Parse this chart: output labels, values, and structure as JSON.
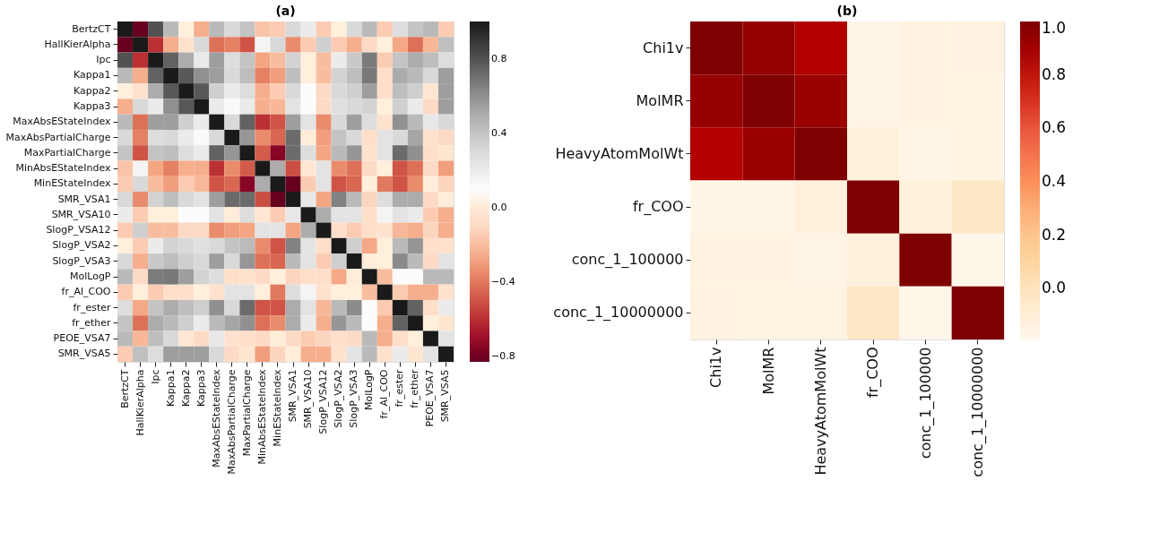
{
  "chart_data": [
    {
      "type": "heatmap",
      "title": "(a)",
      "categories": [
        "BertzCT",
        "HallKierAlpha",
        "Ipc",
        "Kappa1",
        "Kappa2",
        "Kappa3",
        "MaxAbsEStateIndex",
        "MaxAbsPartialCharge",
        "MaxPartialCharge",
        "MinAbsEStateIndex",
        "MinEStateIndex",
        "SMR_VSA1",
        "SMR_VSA10",
        "SlogP_VSA12",
        "SlogP_VSA2",
        "SlogP_VSA3",
        "MolLogP",
        "fr_Al_COO",
        "fr_ester",
        "fr_ether",
        "PEOE_VSA7",
        "SMR_VSA5"
      ],
      "y_categories": [
        "BertzCT",
        "HallKierAlpha",
        "Ipc",
        "Kappa1",
        "Kappa2",
        "Kappa3",
        "MaxAbsEStateIndex",
        "MaxAbsPartialCharge",
        "MaxPartialCharge",
        "MinAbsEStateIndex",
        "MinEStateIndex",
        "SMR_VSA1",
        "SMR_VSA10",
        "SlogP_VSA12",
        "SlogP_VSA2",
        "SlogP_VSA3",
        "MolLogP",
        "fr_Al_COO",
        "fr_ester",
        "fr_ether",
        "PEOE_VSA7",
        "SMR_VSA5"
      ],
      "cells": [
        [
          1,
          -0.83,
          0.8,
          0.45,
          0.03,
          -0.25,
          0.45,
          0.3,
          0.4,
          -0.18,
          -0.15,
          0.3,
          0.2,
          -0.15,
          0.03,
          0.3,
          0.45,
          -0.15,
          0.28,
          0.4,
          0.45,
          -0.15
        ],
        [
          -0.83,
          1,
          -0.6,
          -0.25,
          -0.05,
          0.3,
          -0.42,
          -0.38,
          -0.5,
          0.15,
          0.3,
          -0.35,
          -0.15,
          0.35,
          -0.15,
          -0.25,
          -0.1,
          0.03,
          -0.27,
          -0.42,
          -0.22,
          0.42
        ],
        [
          0.8,
          -0.6,
          1,
          0.75,
          0.5,
          0.2,
          0.55,
          0.28,
          0.4,
          -0.28,
          -0.2,
          0.33,
          0.03,
          -0.2,
          0.2,
          0.38,
          0.67,
          -0.15,
          0.4,
          0.5,
          0.43,
          0.28
        ],
        [
          0.45,
          -0.25,
          0.75,
          1,
          0.78,
          0.6,
          0.55,
          0.3,
          0.43,
          -0.38,
          -0.3,
          0.43,
          0.03,
          -0.2,
          0.33,
          0.43,
          0.68,
          -0.08,
          0.5,
          0.45,
          0.3,
          0.55
        ],
        [
          0.03,
          -0.05,
          0.5,
          0.78,
          1,
          0.78,
          0.35,
          0.2,
          0.28,
          -0.25,
          -0.15,
          0.3,
          0.1,
          -0.1,
          0.3,
          0.35,
          0.55,
          -0.08,
          0.43,
          0.35,
          -0.02,
          0.55
        ],
        [
          -0.25,
          0.3,
          0.2,
          0.6,
          0.78,
          1,
          0.2,
          0.12,
          0.2,
          -0.25,
          -0.22,
          0.25,
          0.1,
          -0.1,
          0.27,
          0.3,
          0.33,
          0.03,
          0.35,
          0.2,
          -0.1,
          0.55
        ],
        [
          0.45,
          -0.42,
          0.55,
          0.55,
          0.35,
          0.2,
          1,
          0.3,
          0.75,
          -0.6,
          -0.5,
          0.55,
          0.25,
          -0.35,
          0.3,
          0.55,
          0.28,
          -0.05,
          0.6,
          0.45,
          0.22,
          0.3
        ],
        [
          0.3,
          -0.38,
          0.28,
          0.3,
          0.2,
          0.12,
          0.3,
          1,
          0.58,
          -0.35,
          -0.45,
          0.72,
          0.02,
          -0.3,
          0.4,
          0.3,
          -0.08,
          0.25,
          0.3,
          0.52,
          -0.05,
          -0.1
        ],
        [
          0.4,
          -0.5,
          0.4,
          0.43,
          0.28,
          0.2,
          0.75,
          0.58,
          1,
          -0.48,
          -0.75,
          0.72,
          0.28,
          -0.28,
          0.45,
          0.58,
          -0.05,
          0.25,
          0.72,
          0.6,
          -0.08,
          -0.03
        ],
        [
          -0.18,
          0.15,
          -0.28,
          -0.38,
          -0.25,
          -0.25,
          -0.6,
          -0.35,
          -0.48,
          1,
          0.5,
          -0.52,
          -0.02,
          0.25,
          -0.35,
          -0.42,
          -0.1,
          0.03,
          -0.5,
          -0.42,
          -0.1,
          -0.3
        ],
        [
          -0.15,
          0.3,
          -0.2,
          -0.3,
          -0.15,
          -0.22,
          -0.5,
          -0.45,
          -0.75,
          0.5,
          1,
          -0.83,
          -0.15,
          0.25,
          -0.5,
          -0.45,
          0.03,
          -0.4,
          -0.5,
          -0.35,
          0.02,
          -0.12
        ],
        [
          0.3,
          -0.35,
          0.33,
          0.43,
          0.3,
          0.25,
          0.55,
          0.72,
          0.72,
          -0.52,
          -0.83,
          1,
          0.22,
          -0.28,
          0.65,
          0.45,
          -0.12,
          0.28,
          0.5,
          0.5,
          -0.1,
          0.02
        ],
        [
          0.2,
          -0.15,
          0.03,
          0.03,
          0.1,
          0.1,
          0.25,
          0.02,
          0.28,
          -0.02,
          -0.15,
          0.22,
          1,
          0.5,
          0.25,
          0.25,
          -0.08,
          0.15,
          0.25,
          0.2,
          -0.15,
          -0.25
        ],
        [
          -0.15,
          0.35,
          -0.2,
          -0.2,
          -0.1,
          -0.1,
          -0.35,
          -0.3,
          -0.28,
          0.25,
          0.25,
          -0.28,
          0.5,
          1,
          -0.08,
          -0.15,
          -0.08,
          -0.05,
          -0.22,
          -0.25,
          -0.12,
          -0.25
        ],
        [
          0.03,
          -0.15,
          0.2,
          0.33,
          0.3,
          0.27,
          0.3,
          0.4,
          0.45,
          -0.35,
          -0.5,
          0.65,
          0.25,
          -0.08,
          1,
          0.35,
          -0.27,
          0.03,
          0.45,
          0.58,
          -0.08,
          -0.05
        ],
        [
          0.3,
          -0.25,
          0.38,
          0.43,
          0.35,
          0.3,
          0.55,
          0.3,
          0.58,
          -0.42,
          -0.45,
          0.45,
          0.25,
          -0.15,
          0.35,
          1,
          0.02,
          0.03,
          0.62,
          0.45,
          -0.1,
          0.25
        ],
        [
          0.45,
          -0.1,
          0.67,
          0.68,
          0.55,
          0.33,
          0.28,
          -0.08,
          -0.05,
          -0.1,
          0.03,
          -0.12,
          -0.08,
          -0.08,
          -0.27,
          0.02,
          1,
          -0.2,
          0.1,
          0.1,
          0.45,
          0.45
        ],
        [
          -0.15,
          0.03,
          -0.15,
          -0.08,
          -0.08,
          0.03,
          -0.05,
          0.25,
          0.25,
          0.03,
          -0.4,
          0.28,
          0.15,
          -0.05,
          0.03,
          0.03,
          -0.2,
          1,
          -0.15,
          -0.25,
          -0.25,
          -0.05
        ],
        [
          0.28,
          -0.27,
          0.4,
          0.5,
          0.43,
          0.35,
          0.6,
          0.3,
          0.72,
          -0.5,
          -0.5,
          0.5,
          0.25,
          -0.22,
          0.45,
          0.62,
          0.1,
          -0.15,
          1,
          0.75,
          -0.08,
          0.2
        ],
        [
          0.4,
          -0.42,
          0.5,
          0.45,
          0.35,
          0.2,
          0.45,
          0.52,
          0.6,
          -0.42,
          -0.35,
          0.5,
          0.2,
          -0.25,
          0.58,
          0.45,
          0.1,
          -0.25,
          0.75,
          1,
          0.03,
          -0.03
        ],
        [
          0.45,
          -0.22,
          0.43,
          0.3,
          -0.02,
          -0.1,
          0.22,
          -0.05,
          -0.08,
          -0.1,
          0.02,
          -0.1,
          -0.15,
          -0.12,
          -0.08,
          -0.1,
          0.45,
          -0.25,
          -0.08,
          0.03,
          1,
          0.25
        ],
        [
          -0.15,
          0.42,
          0.28,
          0.55,
          0.55,
          0.55,
          0.3,
          -0.1,
          -0.03,
          -0.3,
          -0.12,
          0.02,
          -0.25,
          -0.25,
          -0.05,
          0.25,
          0.45,
          -0.05,
          0.2,
          -0.03,
          0.25,
          1
        ]
      ],
      "clim": [
        -0.83,
        1.0
      ],
      "cticks": [
        {
          "value": -0.8,
          "label": "−0.8"
        },
        {
          "value": -0.4,
          "label": "−0.4"
        },
        {
          "value": 0,
          "label": "0.0"
        },
        {
          "value": 0.4,
          "label": "0.4"
        },
        {
          "value": 0.8,
          "label": "0.8"
        }
      ]
    },
    {
      "type": "heatmap",
      "title": "(b)",
      "categories": [
        "Chi1v",
        "MolMR",
        "HeavyAtomMolWt",
        "fr_COO",
        "conc_1_100000",
        "conc_1_10000000"
      ],
      "y_categories": [
        "Chi1v",
        "MolMR",
        "HeavyAtomMolWt",
        "fr_COO",
        "conc_1_100000",
        "conc_1_10000000"
      ],
      "cells": [
        [
          1,
          0.93,
          0.85,
          -0.17,
          -0.14,
          -0.14
        ],
        [
          0.93,
          1,
          0.92,
          -0.17,
          -0.14,
          -0.15
        ],
        [
          0.85,
          0.92,
          1,
          -0.12,
          -0.16,
          -0.15
        ],
        [
          -0.17,
          -0.17,
          -0.12,
          1,
          -0.12,
          -0.03
        ],
        [
          -0.14,
          -0.14,
          -0.16,
          -0.12,
          1,
          -0.18
        ],
        [
          -0.14,
          -0.15,
          -0.15,
          -0.03,
          -0.18,
          1
        ]
      ],
      "clim": [
        -0.19,
        1.0
      ],
      "cticks": [
        {
          "value": 0,
          "label": "0.0"
        },
        {
          "value": 0.2,
          "label": "0.2"
        },
        {
          "value": 0.4,
          "label": "0.4"
        },
        {
          "value": 0.6,
          "label": "0.6"
        },
        {
          "value": 0.8,
          "label": "0.8"
        },
        {
          "value": 1.0,
          "label": "1.0"
        }
      ]
    }
  ]
}
